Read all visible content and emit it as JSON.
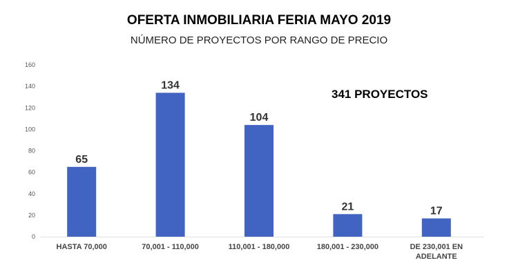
{
  "chart_data": {
    "type": "bar",
    "title": "OFERTA INMOBILIARIA FERIA MAYO 2019",
    "subtitle": "NÚMERO DE PROYECTOS POR RANGO DE PRECIO",
    "annotation": "341 PROYECTOS",
    "categories": [
      [
        "HASTA 70,000"
      ],
      [
        "70,001 - 110,000"
      ],
      [
        "110,001 - 180,000"
      ],
      [
        "180,001 - 230,000"
      ],
      [
        "DE 230,001 EN",
        "ADELANTE"
      ]
    ],
    "values": [
      65,
      134,
      104,
      21,
      17
    ],
    "data_labels": [
      "65",
      "134",
      "104",
      "21",
      "17"
    ],
    "yticks": [
      0,
      20,
      40,
      60,
      80,
      100,
      120,
      140,
      160
    ],
    "ylim": [
      0,
      160
    ],
    "xlabel": "",
    "ylabel": "",
    "grid": false,
    "bar_color": "#4164c3"
  }
}
